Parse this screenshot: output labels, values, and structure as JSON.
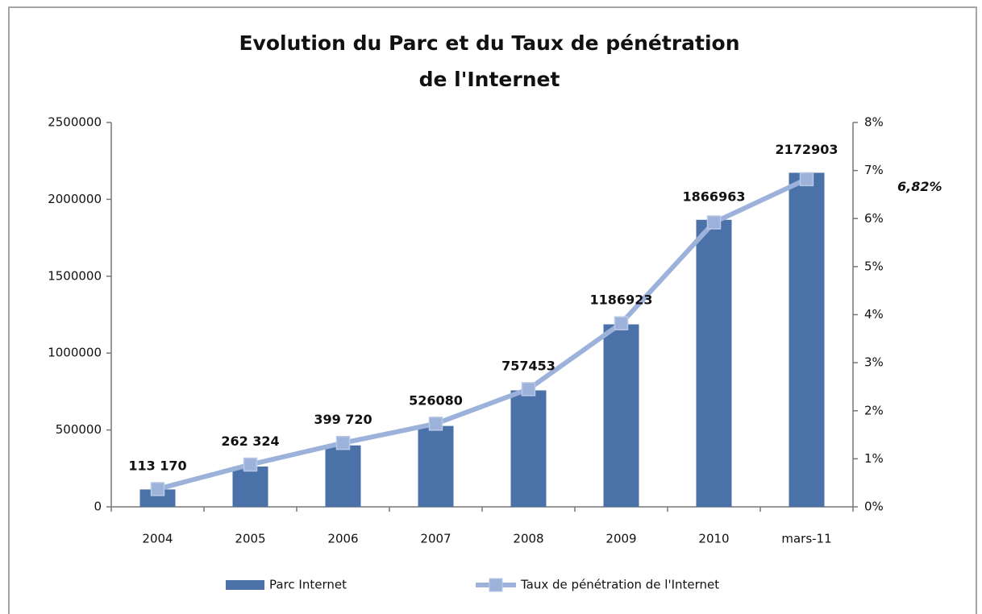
{
  "chart_data": {
    "type": "bar_line",
    "title": [
      "Evolution du Parc et du Taux de pénétration",
      "de l'Internet"
    ],
    "categories": [
      "2004",
      "2005",
      "2006",
      "2007",
      "2008",
      "2009",
      "2010",
      "mars-11"
    ],
    "series": [
      {
        "name": "Parc Internet",
        "color": "#4a72a9",
        "type": "bar",
        "axis": "y",
        "values": [
          113170,
          262324,
          399720,
          526080,
          757453,
          1186923,
          1866963,
          2172903
        ],
        "value_labels": [
          "113 170",
          "262 324",
          "399 720",
          "526080",
          "757453",
          "1186923",
          "1866963",
          "2172903"
        ]
      },
      {
        "name": "Taux de pénétration de l'Internet",
        "color": "#9db2da",
        "type": "line",
        "axis": "y2",
        "values": [
          0.37,
          0.88,
          1.33,
          1.73,
          2.45,
          3.82,
          5.92,
          6.82
        ],
        "value_labels": [
          null,
          null,
          null,
          null,
          null,
          null,
          null,
          "6,82%"
        ]
      }
    ],
    "ylim": [
      0,
      2500000
    ],
    "yticks": [
      0,
      500000,
      1000000,
      1500000,
      2000000,
      2500000
    ],
    "y2lim": [
      0,
      8
    ],
    "y2ticks": [
      {
        "value": 0,
        "label": "0%"
      },
      {
        "value": 1,
        "label": "1%"
      },
      {
        "value": 2,
        "label": "2%"
      },
      {
        "value": 3,
        "label": "3%"
      },
      {
        "value": 4,
        "label": "4%"
      },
      {
        "value": 5,
        "label": "5%"
      },
      {
        "value": 6,
        "label": "6%"
      },
      {
        "value": 7,
        "label": "7%"
      },
      {
        "value": 8,
        "label": "8%"
      }
    ],
    "grid": false,
    "legend": "bottom"
  }
}
